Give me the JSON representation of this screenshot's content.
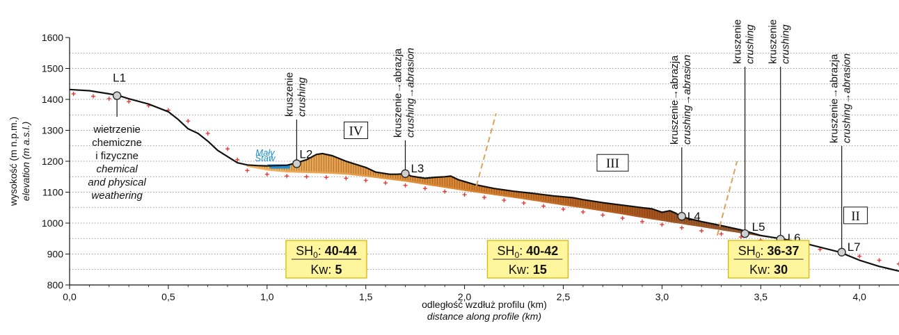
{
  "chart_data": {
    "type": "line",
    "title": "",
    "xlabel": "odległość wzdłuż profilu (km)",
    "xlabel_en": "distance along profile (km)",
    "ylabel": "wysokość (m n.p.m.)",
    "ylabel_en": "elevation (m a.s.l.)",
    "xlim": [
      0,
      4.2
    ],
    "ylim": [
      800,
      1600
    ],
    "x_ticks": [
      "0,0",
      "0,5",
      "1,0",
      "1,5",
      "2,0",
      "2,5",
      "3,0",
      "3,5",
      "4,0"
    ],
    "y_ticks": [
      "800",
      "900",
      "1000",
      "1100",
      "1200",
      "1300",
      "1400",
      "1500",
      "1600"
    ],
    "grid": "horizontal dotted",
    "series": [
      {
        "kind": "surface",
        "points": [
          [
            0,
            1432
          ],
          [
            0.1,
            1428
          ],
          [
            0.2,
            1418
          ],
          [
            0.25,
            1412
          ],
          [
            0.3,
            1402
          ],
          [
            0.4,
            1385
          ],
          [
            0.5,
            1360
          ],
          [
            0.55,
            1335
          ],
          [
            0.6,
            1305
          ],
          [
            0.65,
            1290
          ],
          [
            0.7,
            1265
          ],
          [
            0.75,
            1235
          ],
          [
            0.8,
            1215
          ],
          [
            0.85,
            1195
          ],
          [
            0.9,
            1188
          ],
          [
            0.95,
            1186
          ],
          [
            1.0,
            1185
          ],
          [
            1.05,
            1186
          ],
          [
            1.1,
            1187
          ],
          [
            1.15,
            1195
          ],
          [
            1.2,
            1205
          ],
          [
            1.25,
            1222
          ],
          [
            1.28,
            1225
          ],
          [
            1.33,
            1218
          ],
          [
            1.4,
            1200
          ],
          [
            1.5,
            1180
          ],
          [
            1.55,
            1165
          ],
          [
            1.62,
            1158
          ],
          [
            1.66,
            1158
          ],
          [
            1.7,
            1160
          ],
          [
            1.73,
            1152
          ],
          [
            1.8,
            1145
          ],
          [
            1.85,
            1148
          ],
          [
            1.9,
            1150
          ],
          [
            1.93,
            1152
          ],
          [
            1.97,
            1140
          ],
          [
            2.05,
            1125
          ],
          [
            2.15,
            1112
          ],
          [
            2.25,
            1103
          ],
          [
            2.35,
            1096
          ],
          [
            2.45,
            1088
          ],
          [
            2.55,
            1082
          ],
          [
            2.6,
            1076
          ],
          [
            2.7,
            1066
          ],
          [
            2.8,
            1058
          ],
          [
            2.9,
            1050
          ],
          [
            2.95,
            1046
          ],
          [
            3.0,
            1035
          ],
          [
            3.04,
            1040
          ],
          [
            3.07,
            1032
          ],
          [
            3.1,
            1020
          ],
          [
            3.2,
            1005
          ],
          [
            3.3,
            992
          ],
          [
            3.4,
            978
          ],
          [
            3.5,
            960
          ],
          [
            3.6,
            950
          ],
          [
            3.7,
            938
          ],
          [
            3.8,
            922
          ],
          [
            3.9,
            906
          ],
          [
            4.0,
            880
          ],
          [
            4.1,
            860
          ],
          [
            4.2,
            845
          ]
        ]
      },
      {
        "kind": "pre-glacial surface (red crosses)",
        "points": [
          [
            0.02,
            1418
          ],
          [
            0.12,
            1410
          ],
          [
            0.2,
            1402
          ],
          [
            0.3,
            1393
          ],
          [
            0.4,
            1380
          ],
          [
            0.5,
            1365
          ],
          [
            0.6,
            1330
          ],
          [
            0.7,
            1290
          ],
          [
            0.8,
            1240
          ],
          [
            0.85,
            1205
          ],
          [
            0.9,
            1170
          ],
          [
            1.0,
            1158
          ],
          [
            1.1,
            1152
          ],
          [
            1.2,
            1150
          ],
          [
            1.3,
            1148
          ],
          [
            1.4,
            1145
          ],
          [
            1.5,
            1138
          ],
          [
            1.6,
            1130
          ],
          [
            1.7,
            1122
          ],
          [
            1.8,
            1112
          ],
          [
            1.9,
            1102
          ],
          [
            2.0,
            1092
          ],
          [
            2.1,
            1083
          ],
          [
            2.2,
            1074
          ],
          [
            2.3,
            1065
          ],
          [
            2.4,
            1055
          ],
          [
            2.5,
            1045
          ],
          [
            2.6,
            1036
          ],
          [
            2.7,
            1026
          ],
          [
            2.8,
            1016
          ],
          [
            2.9,
            1005
          ],
          [
            3.0,
            995
          ],
          [
            3.1,
            985
          ],
          [
            3.2,
            975
          ],
          [
            3.3,
            965
          ],
          [
            3.4,
            955
          ],
          [
            3.5,
            945
          ],
          [
            3.6,
            935
          ],
          [
            3.7,
            925
          ],
          [
            3.8,
            915
          ],
          [
            3.9,
            905
          ],
          [
            4.0,
            893
          ],
          [
            4.1,
            880
          ],
          [
            4.2,
            868
          ]
        ]
      }
    ],
    "locations": [
      {
        "label": "L1",
        "x": 0.24,
        "y": 1412
      },
      {
        "label": "L2",
        "x": 1.15,
        "y": 1192
      },
      {
        "label": "L3",
        "x": 1.7,
        "y": 1160
      },
      {
        "label": "L4",
        "x": 3.1,
        "y": 1022
      },
      {
        "label": "L5",
        "x": 3.42,
        "y": 966
      },
      {
        "label": "L6",
        "x": 3.6,
        "y": 948
      },
      {
        "label": "L7",
        "x": 3.91,
        "y": 906
      }
    ],
    "zones": [
      "IV",
      "III",
      "II"
    ],
    "lake": {
      "name_line1": "Mały",
      "name_line2": "Staw"
    },
    "annotations": {
      "L1": [
        "wietrzenie",
        "chemiczne",
        "i fizyczne",
        "chemical",
        "and physical",
        "weathering"
      ],
      "L2": {
        "pl": "kruszenie",
        "en": "crushing"
      },
      "L3": {
        "pl": "kruszenie→abrazja",
        "en": "crushing→abrasion"
      },
      "L4": {
        "pl": "kruszenie→abrazja",
        "en": "crushing→abrasion"
      },
      "L5": {
        "pl": "kruszenie",
        "en": "crushing"
      },
      "L6": {
        "pl": "kruszenie",
        "en": "crushing"
      },
      "L7": {
        "pl": "kruszenie→abrazja",
        "en": "crushing→abrasion"
      }
    },
    "boxes": [
      {
        "sh_label": "SH",
        "sh_sub": "0",
        "sh_value": "40-44",
        "kw_label": "Kw",
        "kw_value": "5"
      },
      {
        "sh_label": "SH",
        "sh_sub": "0",
        "sh_value": "40-42",
        "kw_label": "Kw",
        "kw_value": "15"
      },
      {
        "sh_label": "SH",
        "sh_sub": "0",
        "sh_value": "36-37",
        "kw_label": "Kw",
        "kw_value": "30"
      }
    ],
    "colors": {
      "surface": "#111111",
      "crosses": "#e53935",
      "fill_orange": "#e08a3a",
      "fill_brown": "#a8541c",
      "fill_grey": "#b5a38e",
      "lake": "#1e90d6",
      "box_bg": "#fff59d",
      "box_border": "#d9b800",
      "boundary": "#d8a35a"
    }
  }
}
